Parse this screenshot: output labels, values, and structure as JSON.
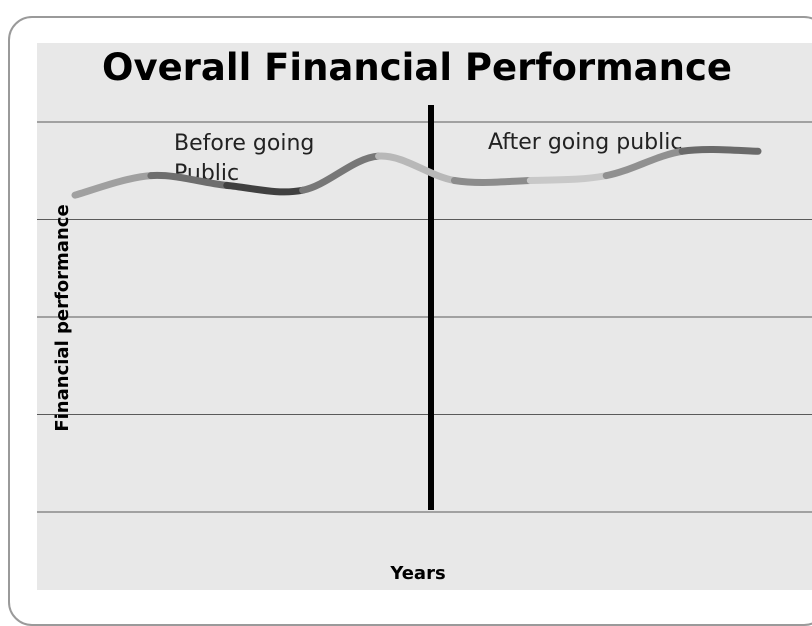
{
  "chart_data": {
    "type": "line",
    "title": "Overall Financial Performance",
    "xlabel": "Years",
    "ylabel": "Financial performance",
    "ylim": [
      0,
      8
    ],
    "grid": true,
    "annotations": [
      {
        "lines": [
          "Before going",
          "Public"
        ]
      },
      {
        "lines": [
          "After going public"
        ]
      }
    ],
    "divider": {
      "label": ""
    },
    "series": [
      {
        "name": "",
        "x": [
          0,
          1,
          2,
          3,
          4,
          5,
          6,
          7,
          8,
          9
        ],
        "values": [
          6.5,
          6.9,
          6.7,
          6.6,
          7.3,
          6.8,
          6.8,
          6.9,
          7.4,
          7.4
        ]
      }
    ],
    "segment_colors": [
      "#a0a0a0",
      "#6e6e6e",
      "#404040",
      "#777777",
      "#b8b8b8",
      "#8c8c8c",
      "#c8c8c8",
      "#909090",
      "#6a6a6a"
    ]
  }
}
